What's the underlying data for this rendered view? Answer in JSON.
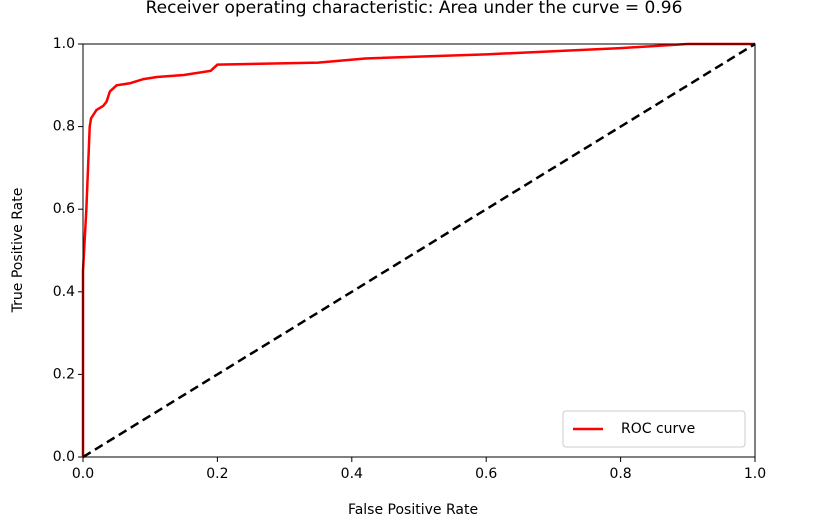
{
  "chart_data": {
    "type": "line",
    "title": "Receiver operating characteristic: Area under the        curve = 0.96",
    "xlabel": "False Positive Rate",
    "ylabel": "True Positive Rate",
    "xlim": [
      0,
      1
    ],
    "ylim": [
      0,
      1
    ],
    "xticks": [
      {
        "value": 0,
        "label": "0.0"
      },
      0.2,
      0.4,
      0.6,
      0.8,
      {
        "value": 1,
        "label": "1.0"
      }
    ],
    "yticks": [
      {
        "value": 0,
        "label": "0.0"
      },
      0.2,
      0.4,
      0.6,
      0.8,
      {
        "value": 1,
        "label": "1.0"
      }
    ],
    "grid": false,
    "legend": "lower right",
    "series": [
      {
        "name": "ROC curve",
        "color": "#ff0000",
        "x": [
          0,
          0,
          0.005,
          0.01,
          0.012,
          0.02,
          0.03,
          0.035,
          0.04,
          0.05,
          0.07,
          0.09,
          0.11,
          0.15,
          0.19,
          0.2,
          0.35,
          0.42,
          0.6,
          0.8,
          0.9,
          1
        ],
        "values": [
          0,
          0.45,
          0.6,
          0.8,
          0.82,
          0.84,
          0.85,
          0.86,
          0.885,
          0.9,
          0.905,
          0.915,
          0.92,
          0.925,
          0.935,
          0.95,
          0.955,
          0.965,
          0.975,
          0.99,
          1,
          1
        ]
      },
      {
        "color": "#000000",
        "dash": true,
        "x": [
          0,
          1
        ],
        "values": [
          0,
          1
        ]
      }
    ]
  }
}
